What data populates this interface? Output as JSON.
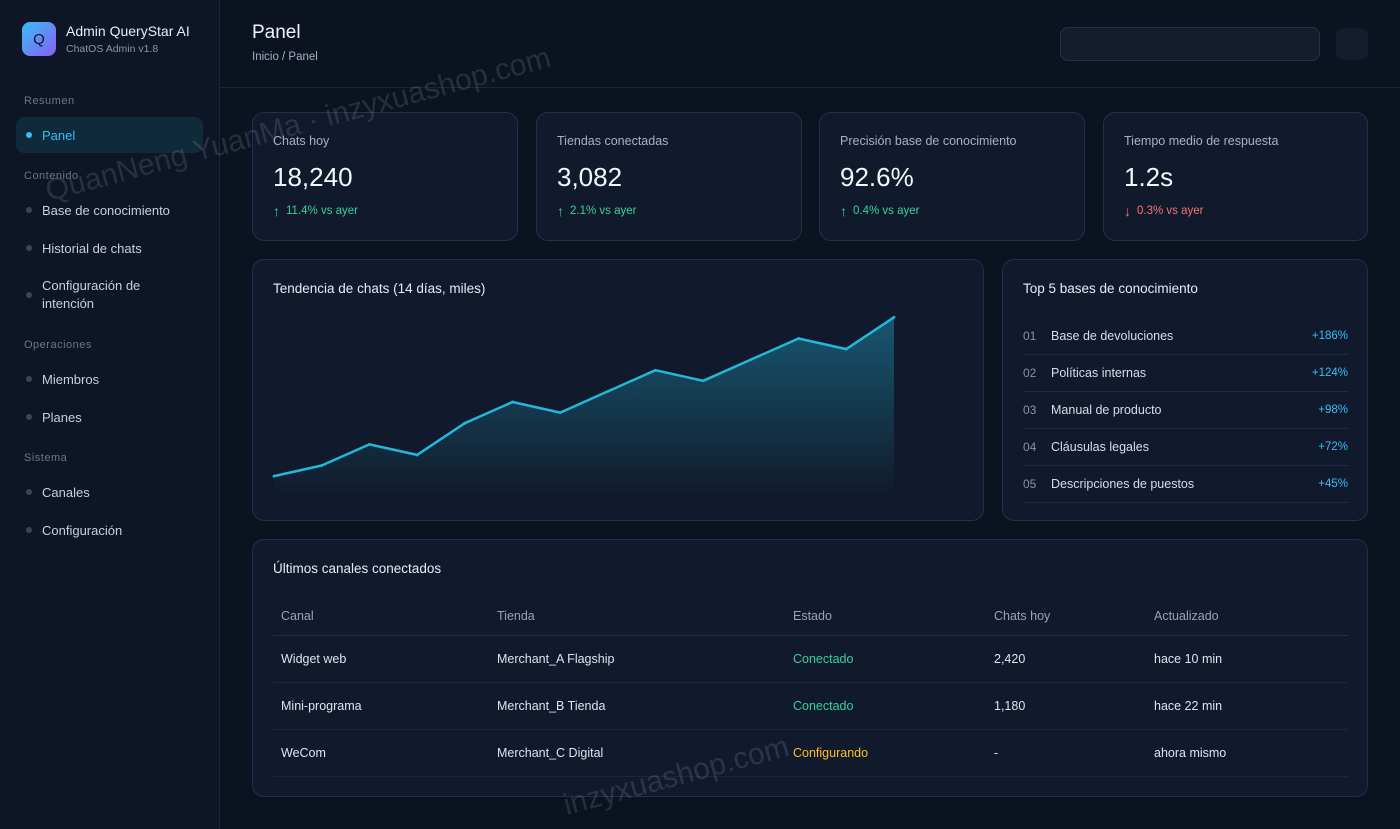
{
  "brand": {
    "logo_letter": "Q",
    "title": "Admin QueryStar AI",
    "subtitle": "ChatOS Admin v1.8"
  },
  "sidebar": {
    "sections": [
      {
        "label": "Resumen",
        "items": [
          {
            "label": "Panel",
            "active": true
          }
        ]
      },
      {
        "label": "Contenido",
        "items": [
          {
            "label": "Base de conocimiento"
          },
          {
            "label": "Historial de chats"
          },
          {
            "label": "Configuración de intención"
          }
        ]
      },
      {
        "label": "Operaciones",
        "items": [
          {
            "label": "Miembros"
          },
          {
            "label": "Planes"
          }
        ]
      },
      {
        "label": "Sistema",
        "items": [
          {
            "label": "Canales"
          },
          {
            "label": "Configuración"
          }
        ]
      }
    ]
  },
  "header": {
    "title": "Panel",
    "breadcrumb": "Inicio / Panel",
    "search_value": ""
  },
  "stats": [
    {
      "label": "Chats hoy",
      "value": "18,240",
      "arrow": "↑",
      "trend": "11.4% vs ayer",
      "direction": "up"
    },
    {
      "label": "Tiendas conectadas",
      "value": "3,082",
      "arrow": "↑",
      "trend": "2.1% vs ayer",
      "direction": "up"
    },
    {
      "label": "Precisión base de conocimiento",
      "value": "92.6%",
      "arrow": "↑",
      "trend": "0.4% vs ayer",
      "direction": "up"
    },
    {
      "label": "Tiempo medio de respuesta",
      "value": "1.2s",
      "arrow": "↓",
      "trend": "0.3% vs ayer",
      "direction": "down"
    }
  ],
  "trend_card": {
    "title": "Tendencia de chats (14 días, miles)"
  },
  "chart_data": {
    "type": "area",
    "title": "Tendencia de chats (14 días, miles)",
    "x": [
      1,
      2,
      3,
      4,
      5,
      6,
      7,
      8,
      9,
      10,
      11,
      12,
      13,
      14
    ],
    "values": [
      9.5,
      10.5,
      12.5,
      11.5,
      14.5,
      16.5,
      15.5,
      17.5,
      19.5,
      18.5,
      20.5,
      22.5,
      21.5,
      24.5
    ],
    "ylim": [
      8,
      25
    ],
    "grid": false,
    "colors": {
      "line": "#22b8d8",
      "fill": "#1a6b86"
    }
  },
  "top_card": {
    "title": "Top 5 bases de conocimiento",
    "items": [
      {
        "rank": "01",
        "name": "Base de devoluciones",
        "pct": "+186%"
      },
      {
        "rank": "02",
        "name": "Políticas internas",
        "pct": "+124%"
      },
      {
        "rank": "03",
        "name": "Manual de producto",
        "pct": "+98%"
      },
      {
        "rank": "04",
        "name": "Cláusulas legales",
        "pct": "+72%"
      },
      {
        "rank": "05",
        "name": "Descripciones de puestos",
        "pct": "+45%"
      }
    ]
  },
  "channels": {
    "title": "Últimos canales conectados",
    "columns": [
      "Canal",
      "Tienda",
      "Estado",
      "Chats hoy",
      "Actualizado"
    ],
    "rows": [
      {
        "channel": "Widget web",
        "store": "Merchant_A Flagship",
        "status": "Conectado",
        "status_kind": "ok",
        "chats": "2,420",
        "updated": "hace 10 min"
      },
      {
        "channel": "Mini-programa",
        "store": "Merchant_B Tienda",
        "status": "Conectado",
        "status_kind": "ok",
        "chats": "1,180",
        "updated": "hace 22 min"
      },
      {
        "channel": "WeCom",
        "store": "Merchant_C Digital",
        "status": "Configurando",
        "status_kind": "warn",
        "chats": "-",
        "updated": "ahora mismo"
      }
    ]
  },
  "watermarks": [
    "QuanNeng YuanMa · inzyxuashop.com",
    "inzyxuashop.com"
  ]
}
